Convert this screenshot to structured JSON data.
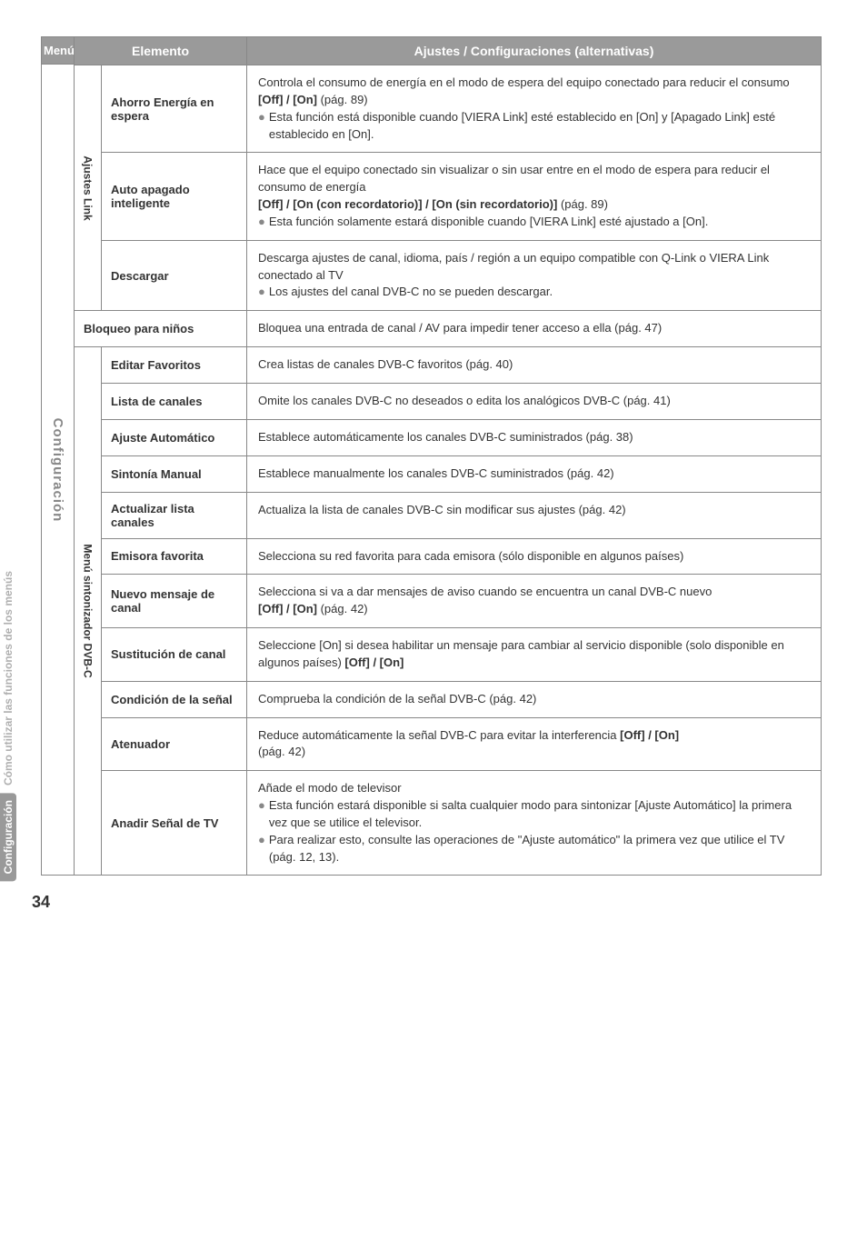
{
  "sidebar": {
    "tab1": "Cómo utilizar las funciones de los menús",
    "tab2": "Configuración"
  },
  "headers": {
    "menu": "Menú",
    "elemento": "Elemento",
    "ajustes": "Ajustes / Configuraciones (alternativas)"
  },
  "menu_label": "Configuración",
  "section_ajustes": {
    "label": "Ajustes Link",
    "rows": [
      {
        "label": "Ahorro Energía en espera",
        "line1": "Controla el consumo de energía en el modo de espera del equipo conectado para reducir el consumo ",
        "bold1": "[Off] / [On]",
        "after1": " (pág. 89)",
        "bullet1": "Esta función está disponible cuando [VIERA Link] esté establecido en [On] y [Apagado Link] esté establecido en [On]."
      },
      {
        "label": "Auto apagado inteligente",
        "line1": "Hace que el equipo conectado sin visualizar o sin usar entre en el modo de espera para reducir el consumo de energía",
        "bold2": "[Off] / [On (con recordatorio)] / [On (sin recordatorio)]",
        "after2": " (pág. 89)",
        "bullet1": "Esta función solamente estará disponible cuando [VIERA Link] esté ajustado a [On]."
      },
      {
        "label": "Descargar",
        "line1": "Descarga ajustes de canal, idioma, país / región a un equipo compatible con Q-Link o VIERA Link conectado al TV",
        "bullet1": "Los ajustes del canal DVB-C no se pueden descargar."
      }
    ]
  },
  "bloqueo": {
    "label": "Bloqueo para niños",
    "desc": "Bloquea una entrada de canal / AV para impedir tener acceso a ella (pág. 47)"
  },
  "section_dvbc": {
    "label": "Menú sintonizador DVB-C",
    "rows": [
      {
        "label": "Editar Favoritos",
        "desc": "Crea listas de canales DVB-C favoritos (pág. 40)"
      },
      {
        "label": "Lista de canales",
        "desc": "Omite los canales DVB-C no deseados o edita los analógicos DVB-C (pág. 41)"
      },
      {
        "label": "Ajuste Automático",
        "desc": "Establece automáticamente los canales DVB-C suministrados (pág. 38)"
      },
      {
        "label": "Sintonía Manual",
        "desc": "Establece manualmente los canales DVB-C suministrados (pág. 42)"
      },
      {
        "label": "Actualizar lista canales",
        "desc": "Actualiza la lista de canales DVB-C sin modificar sus ajustes (pág. 42)"
      },
      {
        "label": "Emisora favorita",
        "desc": "Selecciona su red favorita para cada emisora (sólo disponible en algunos países)"
      },
      {
        "label": "Nuevo mensaje de canal",
        "line1": "Selecciona si va a dar mensajes de aviso cuando se encuentra un canal DVB-C nuevo ",
        "bold1": "[Off] / [On]",
        "after1": " (pág. 42)"
      },
      {
        "label": "Sustitución de canal",
        "line1": "Seleccione [On] si desea habilitar un mensaje para cambiar al servicio disponible (solo disponible en algunos países) ",
        "bold1": "[Off] / [On]"
      },
      {
        "label": "Condición de la señal",
        "desc": "Comprueba la condición de la señal DVB-C (pág. 42)"
      },
      {
        "label": "Atenuador",
        "line1": "Reduce automáticamente la señal DVB-C para evitar la interferencia ",
        "bold1": "[Off] / [On]",
        "line2": "(pág. 42)"
      },
      {
        "label": "Anadir Señal de TV",
        "line1": "Añade el modo de televisor",
        "bullet1": "Esta función estará disponible si salta cualquier modo para sintonizar [Ajuste Automático] la primera vez que se utilice el televisor.",
        "bullet2": "Para realizar esto, consulte las operaciones de \"Ajuste automático\" la primera vez que utilice el TV (pág. 12, 13)."
      }
    ]
  },
  "page_number": "34"
}
